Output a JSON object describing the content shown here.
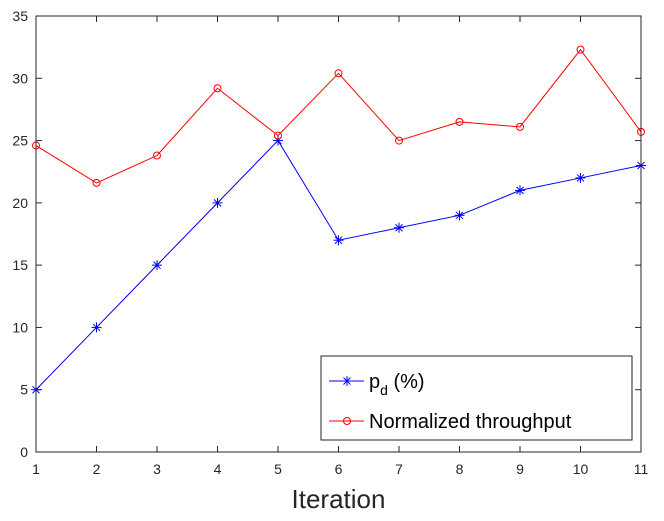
{
  "chart_data": {
    "type": "line",
    "title": "",
    "xlabel": "Iteration",
    "ylabel": "",
    "x": [
      1,
      2,
      3,
      4,
      5,
      6,
      7,
      8,
      9,
      10,
      11
    ],
    "xlim": [
      1,
      11
    ],
    "ylim": [
      0,
      35
    ],
    "xticks": [
      "1",
      "2",
      "3",
      "4",
      "5",
      "6",
      "7",
      "8",
      "9",
      "10",
      "11"
    ],
    "yticks": [
      "0",
      "5",
      "10",
      "15",
      "20",
      "25",
      "30",
      "35"
    ],
    "grid": false,
    "legend_position": "bottom-right",
    "series": [
      {
        "name": "p_d (%)",
        "legend_main": "p",
        "legend_sub": "d",
        "legend_rest": " (%)",
        "color": "#0000ff",
        "marker": "asterisk",
        "values": [
          5,
          10,
          15,
          20,
          25,
          17,
          18,
          19,
          21,
          22,
          23
        ]
      },
      {
        "name": "Normalized throughput",
        "legend_label": "Normalized throughput",
        "color": "#ff0000",
        "marker": "circle",
        "values": [
          24.6,
          21.6,
          23.8,
          29.2,
          25.4,
          30.4,
          25.0,
          26.5,
          26.1,
          32.3,
          25.7
        ]
      }
    ]
  }
}
